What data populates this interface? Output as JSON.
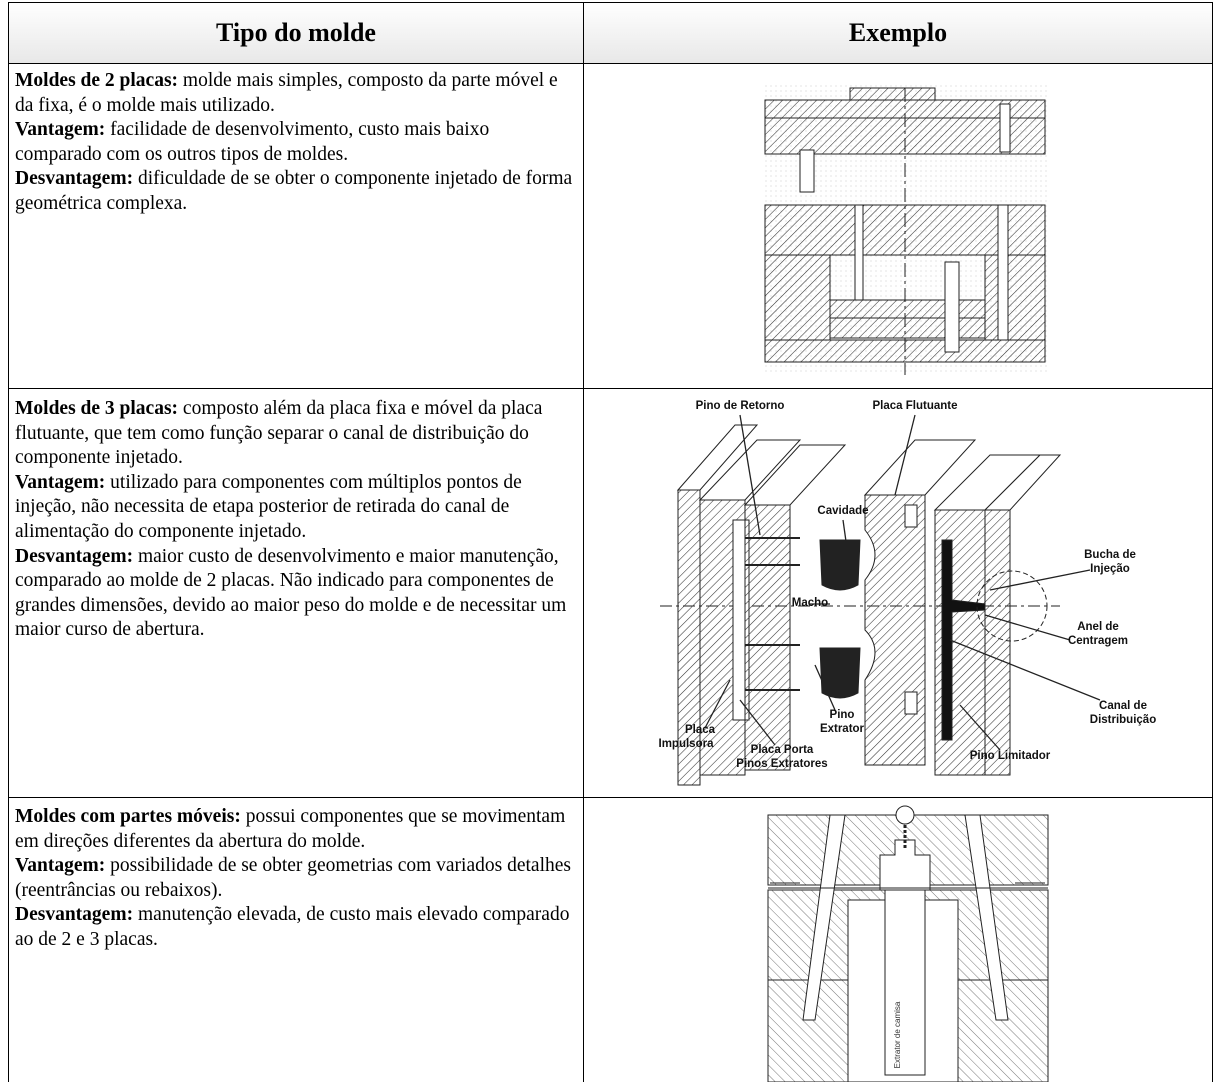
{
  "table": {
    "header": [
      "Tipo do molde",
      "Exemplo"
    ],
    "rows": [
      {
        "paragraphs": [
          {
            "label": "Moldes de 2 placas:",
            "text": " molde mais simples, composto da parte móvel e da fixa, é o molde mais utilizado."
          },
          {
            "label": "Vantagem:",
            "text": " facilidade de desenvolvimento, custo mais baixo comparado com os outros tipos de moldes."
          },
          {
            "label": "Desvantagem:",
            "text": " dificuldade de se obter o componente injetado de forma geométrica complexa."
          }
        ]
      },
      {
        "paragraphs": [
          {
            "label": "Moldes de 3 placas:",
            "text": " composto além da placa fixa e móvel da placa flutuante, que tem como função separar o canal de distribuição do componente injetado."
          },
          {
            "label": "Vantagem:",
            "text": " utilizado para componentes com múltiplos pontos de injeção, não necessita de etapa posterior de retirada do canal de alimentação do componente injetado."
          },
          {
            "label": "Desvantagem:",
            "text": " maior custo de desenvolvimento e maior manutenção, comparado ao molde de 2 placas. Não indicado para componentes de grandes dimensões, devido ao maior peso do molde e de necessitar um maior curso de abertura."
          }
        ],
        "figure_labels": [
          [
            "Pino de Retorno"
          ],
          [
            "Placa Flutuante"
          ],
          [
            "Cavidade"
          ],
          [
            "Bucha de",
            "Injeção"
          ],
          [
            "Macho"
          ],
          [
            "Anel de",
            "Centragem"
          ],
          [
            "Canal de",
            "Distribuição"
          ],
          [
            "Pino",
            "Extrator"
          ],
          [
            "Placa",
            "Impulsora"
          ],
          [
            "Placa Porta",
            "Pinos Extratores"
          ],
          [
            "Pino Limitador"
          ]
        ]
      },
      {
        "paragraphs": [
          {
            "label": "Moldes com partes móveis:",
            "text": " possui componentes que se movimentam em direções diferentes da abertura do molde."
          },
          {
            "label": "Vantagem:",
            "text": " possibilidade de se obter geometrias com variados detalhes (reentrâncias ou rebaixos)."
          },
          {
            "label": "Desvantagem:",
            "text": " manutenção elevada, de custo mais elevado comparado ao de 2 e 3 placas."
          }
        ],
        "figure_labels": [
          [
            "Extrator de camisa"
          ]
        ]
      }
    ]
  }
}
